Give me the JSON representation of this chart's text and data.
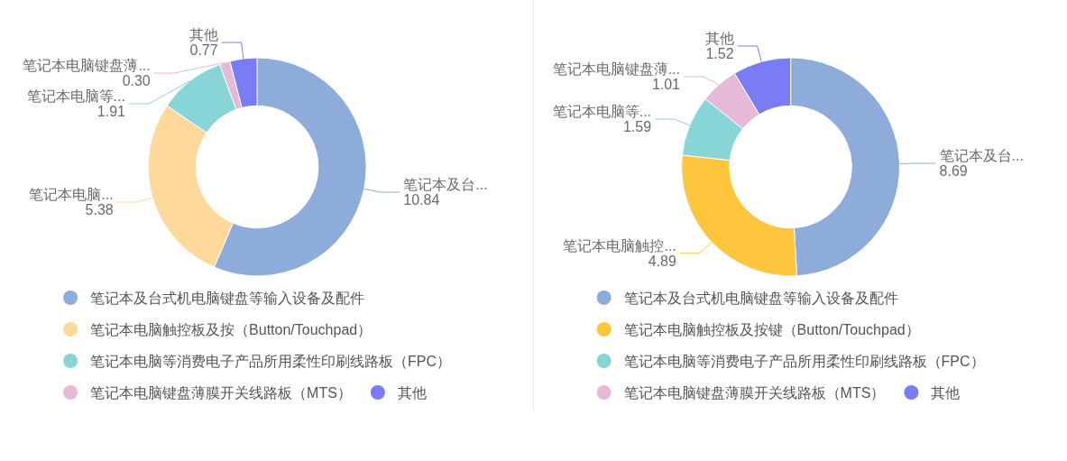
{
  "chart_data": [
    {
      "type": "donut",
      "categories": [
        "笔记本及台式机电脑键盘等输入设备及配件",
        "笔记本电脑触控板及按（Button/Touchpad）",
        "笔记本电脑等消费电子产品所用柔性印刷线路板（FPC）",
        "笔记本电脑键盘薄膜开关线路板（MTS）",
        "其他"
      ],
      "values": [
        10.84,
        5.38,
        1.91,
        0.3,
        0.77
      ],
      "value_labels": [
        "笔记本及台...\n10.84",
        "笔记本电脑...\n5.38",
        "笔记本电脑等...\n1.91",
        "笔记本电脑键盘薄...\n0.30",
        "其他\n0.77"
      ],
      "colors": [
        "#8eacda",
        "#fed99b",
        "#88d5d8",
        "#e6b9d8",
        "#797cf5"
      ],
      "legend": "bottom"
    },
    {
      "type": "donut",
      "categories": [
        "笔记本及台式机电脑键盘等输入设备及配件",
        "笔记本电脑触控板及按键（Button/Touchpad）",
        "笔记本电脑等消费电子产品所用柔性印刷线路板（FPC）",
        "笔记本电脑键盘薄膜开关线路板（MTS）",
        "其他"
      ],
      "values": [
        8.69,
        4.89,
        1.59,
        1.01,
        1.52
      ],
      "value_labels": [
        "笔记本及台...\n8.69",
        "笔记本电脑触控...\n4.89",
        "笔记本电脑等...\n1.59",
        "笔记本电脑键盘薄...\n1.01",
        "其他\n1.52"
      ],
      "colors": [
        "#8eacda",
        "#ffc53d",
        "#88d5d8",
        "#e6b9d8",
        "#797cf5"
      ],
      "legend": "bottom"
    }
  ]
}
